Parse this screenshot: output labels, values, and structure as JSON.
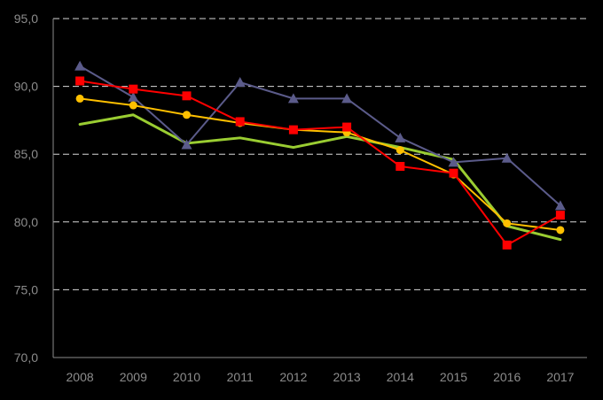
{
  "chart_data": {
    "type": "line",
    "categories": [
      "2008",
      "2009",
      "2010",
      "2011",
      "2012",
      "2013",
      "2014",
      "2015",
      "2016",
      "2017"
    ],
    "ylim": [
      70,
      95
    ],
    "yticks": [
      "70,0",
      "75,0",
      "80,0",
      "85,0",
      "90,0",
      "95,0"
    ],
    "grid": "horizontal dashed",
    "legend": "none",
    "series": [
      {
        "color": "#9acd32",
        "marker": "none",
        "values": [
          87.2,
          87.9,
          85.8,
          86.2,
          85.5,
          86.3,
          85.5,
          84.6,
          79.7,
          78.7
        ]
      },
      {
        "color": "#5b5b8a",
        "marker": "triangle",
        "values": [
          91.5,
          89.2,
          85.7,
          90.3,
          89.1,
          89.1,
          86.2,
          84.4,
          84.7,
          81.2
        ]
      },
      {
        "color": "#ffc000",
        "marker": "circle",
        "values": [
          89.1,
          88.6,
          87.9,
          87.3,
          86.8,
          86.6,
          85.3,
          83.5,
          79.9,
          79.4
        ]
      },
      {
        "color": "#ff0000",
        "marker": "square",
        "values": [
          90.4,
          89.8,
          89.3,
          87.4,
          86.8,
          87.0,
          84.1,
          83.6,
          78.3,
          80.5
        ]
      }
    ]
  }
}
